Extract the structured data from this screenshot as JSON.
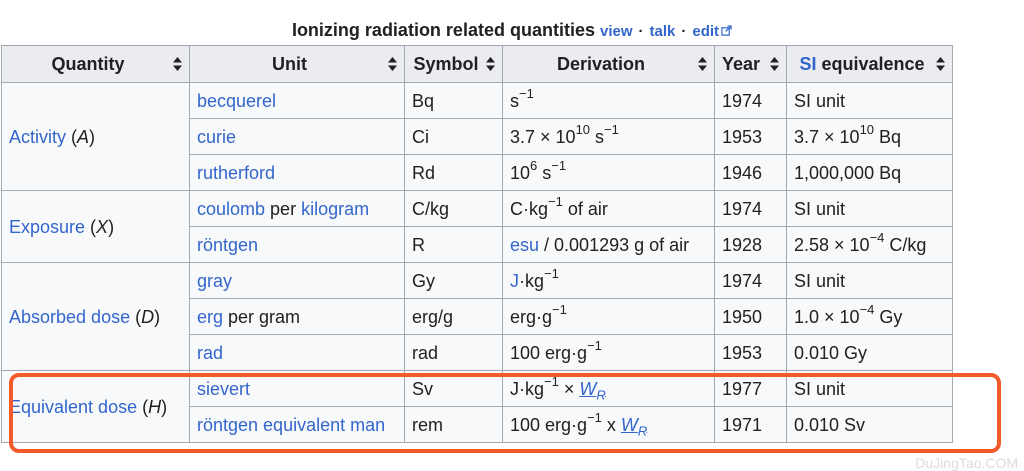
{
  "caption": {
    "title": "Ionizing radiation related quantities",
    "view": "view",
    "talk": "talk",
    "edit": "edit",
    "sep": "·"
  },
  "headers": [
    "Quantity",
    "Unit",
    "Symbol",
    "Derivation",
    "Year",
    "SI equivalence"
  ],
  "headers_year": "Year",
  "headers_si_link": "SI",
  "headers_si_rest": " equivalence",
  "rows": {
    "activity": {
      "label": "Activity",
      "var": "A"
    },
    "exposure": {
      "label": "Exposure",
      "var": "X"
    },
    "absorbed": {
      "label": "Absorbed dose",
      "var": "D"
    },
    "equivalent": {
      "label": "Equivalent dose",
      "var": "H"
    }
  },
  "cells": {
    "becquerel": {
      "unit": "becquerel",
      "symbol": "Bq",
      "deriv_base": "s",
      "deriv_exp": "−1",
      "year": "1974",
      "si": "SI unit"
    },
    "curie": {
      "unit": "curie",
      "symbol": "Ci",
      "deriv_pre": "3.7 × 10",
      "deriv_exp1": "10",
      "deriv_mid": " s",
      "deriv_exp2": "−1",
      "year": "1953",
      "si_pre": "3.7 × 10",
      "si_exp": "10",
      "si_post": " Bq"
    },
    "rutherford": {
      "unit": "rutherford",
      "symbol": "Rd",
      "deriv_pre": "10",
      "deriv_exp1": "6",
      "deriv_mid": " s",
      "deriv_exp2": "−1",
      "year": "1946",
      "si": "1,000,000 Bq"
    },
    "coulomb": {
      "unit_a": "coulomb",
      "unit_mid": " per ",
      "unit_b": "kilogram",
      "symbol": "C/kg",
      "deriv_pre": "C·kg",
      "deriv_exp": "−1",
      "deriv_post": " of air",
      "year": "1974",
      "si": "SI unit"
    },
    "rontgen": {
      "unit": "röntgen",
      "symbol": "R",
      "deriv_link": "esu",
      "deriv_post": " / 0.001293 g of air",
      "year": "1928",
      "si_pre": "2.58 × 10",
      "si_exp": "−4",
      "si_post": " C/kg"
    },
    "gray": {
      "unit": "gray",
      "symbol": "Gy",
      "deriv_link": "J",
      "deriv_mid": "·kg",
      "deriv_exp": "−1",
      "year": "1974",
      "si": "SI unit"
    },
    "erg": {
      "unit_link": "erg",
      "unit_post": " per gram",
      "symbol": "erg/g",
      "deriv_pre": "erg·g",
      "deriv_exp": "−1",
      "year": "1950",
      "si_pre": "1.0 × 10",
      "si_exp": "−4",
      "si_post": " Gy"
    },
    "rad": {
      "unit": "rad",
      "symbol": "rad",
      "deriv_pre": "100 erg·g",
      "deriv_exp": "−1",
      "year": "1953",
      "si": "0.010 Gy"
    },
    "sievert": {
      "unit": "sievert",
      "symbol": "Sv",
      "deriv_pre": "J·kg",
      "deriv_exp": "−1",
      "deriv_mid": " × ",
      "w": "W",
      "w_sub": "R",
      "year": "1977",
      "si": "SI unit"
    },
    "rem": {
      "unit": "röntgen equivalent man",
      "symbol": "rem",
      "deriv_pre": "100 erg·g",
      "deriv_exp": "−1",
      "deriv_mid": " x ",
      "w": "W",
      "w_sub": "R",
      "year": "1971",
      "si": "0.010 Sv"
    }
  },
  "watermark": "DuJingTao.COM",
  "colors": {
    "link": "#3366cc",
    "header_bg": "#eaecf0",
    "cell_bg": "#f8f9fa",
    "border": "#a2a9b1",
    "highlight": "#f25a2b"
  }
}
